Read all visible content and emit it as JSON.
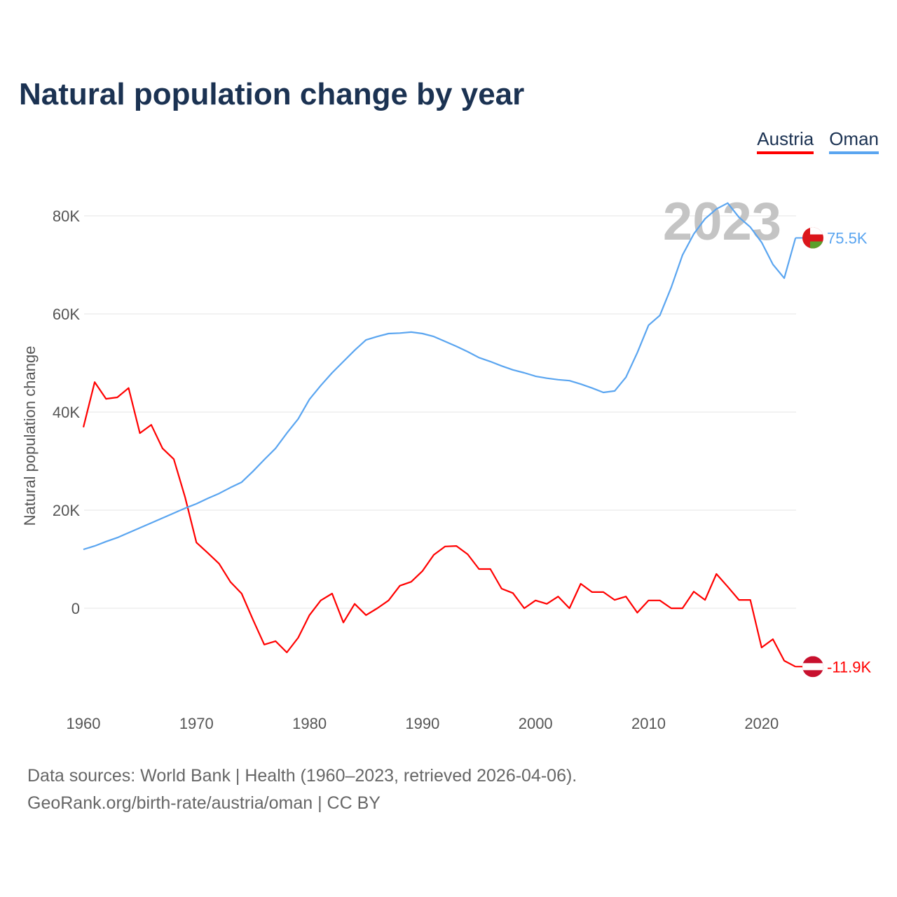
{
  "title": "Natural population change by year",
  "legend": [
    {
      "label": "Austria",
      "color": "#ff0000"
    },
    {
      "label": "Oman",
      "color": "#5aa5f0"
    }
  ],
  "source_line1": "Data sources: World Bank | Health (1960–2023, retrieved 2026-04-06).",
  "source_line2": "GeoRank.org/birth-rate/austria/oman | CC BY",
  "chart_data": {
    "type": "line",
    "title": "Natural population change by year",
    "xlabel": "",
    "ylabel": "Natural population change",
    "year_watermark": "2023",
    "xlim": [
      1960,
      2023
    ],
    "ylim": [
      -20000,
      90000
    ],
    "x_ticks": [
      1960,
      1970,
      1980,
      1990,
      2000,
      2010,
      2020
    ],
    "y_ticks": [
      {
        "value": 0,
        "label": "0"
      },
      {
        "value": 20000,
        "label": "20K"
      },
      {
        "value": 40000,
        "label": "40K"
      },
      {
        "value": 60000,
        "label": "60K"
      },
      {
        "value": 80000,
        "label": "80K"
      }
    ],
    "grid": true,
    "legend_position": "top-right",
    "x": [
      1960,
      1961,
      1962,
      1963,
      1964,
      1965,
      1966,
      1967,
      1968,
      1969,
      1970,
      1971,
      1972,
      1973,
      1974,
      1975,
      1976,
      1977,
      1978,
      1979,
      1980,
      1981,
      1982,
      1983,
      1984,
      1985,
      1986,
      1987,
      1988,
      1989,
      1990,
      1991,
      1992,
      1993,
      1994,
      1995,
      1996,
      1997,
      1998,
      1999,
      2000,
      2001,
      2002,
      2003,
      2004,
      2005,
      2006,
      2007,
      2008,
      2009,
      2010,
      2011,
      2012,
      2013,
      2014,
      2015,
      2016,
      2017,
      2018,
      2019,
      2020,
      2021,
      2022,
      2023
    ],
    "series": [
      {
        "name": "Austria",
        "color": "#ff0000",
        "end_label": "-11.9K",
        "flag": "austria",
        "values": [
          36900,
          46100,
          42700,
          43000,
          44900,
          35700,
          37400,
          32600,
          30400,
          22600,
          13400,
          11300,
          9100,
          5400,
          3000,
          -2300,
          -7400,
          -6700,
          -9000,
          -6000,
          -1400,
          1600,
          3000,
          -2900,
          900,
          -1400,
          0,
          1600,
          4600,
          5400,
          7600,
          10900,
          12600,
          12700,
          11000,
          8000,
          8000,
          4000,
          3100,
          0,
          1600,
          900,
          2400,
          0,
          5000,
          3300,
          3300,
          1700,
          2400,
          -900,
          1600,
          1600,
          0,
          0,
          3400,
          1700,
          7000,
          4400,
          1700,
          1700,
          -8000,
          -6300,
          -10700,
          -11900
        ]
      },
      {
        "name": "Oman",
        "color": "#5aa5f0",
        "end_label": "75.5K",
        "flag": "oman",
        "values": [
          12000,
          12700,
          13600,
          14400,
          15400,
          16400,
          17400,
          18400,
          19400,
          20400,
          21300,
          22400,
          23400,
          24600,
          25700,
          27900,
          30300,
          32600,
          35700,
          38600,
          42600,
          45400,
          48000,
          50300,
          52600,
          54700,
          55400,
          56000,
          56100,
          56300,
          56000,
          55400,
          54400,
          53400,
          52300,
          51100,
          50300,
          49400,
          48600,
          48000,
          47300,
          46900,
          46600,
          46400,
          45700,
          44900,
          44000,
          44300,
          47100,
          52100,
          57700,
          59700,
          65400,
          72000,
          76300,
          79400,
          81400,
          82600,
          79700,
          77700,
          74600,
          70100,
          67300,
          75500
        ]
      }
    ]
  }
}
